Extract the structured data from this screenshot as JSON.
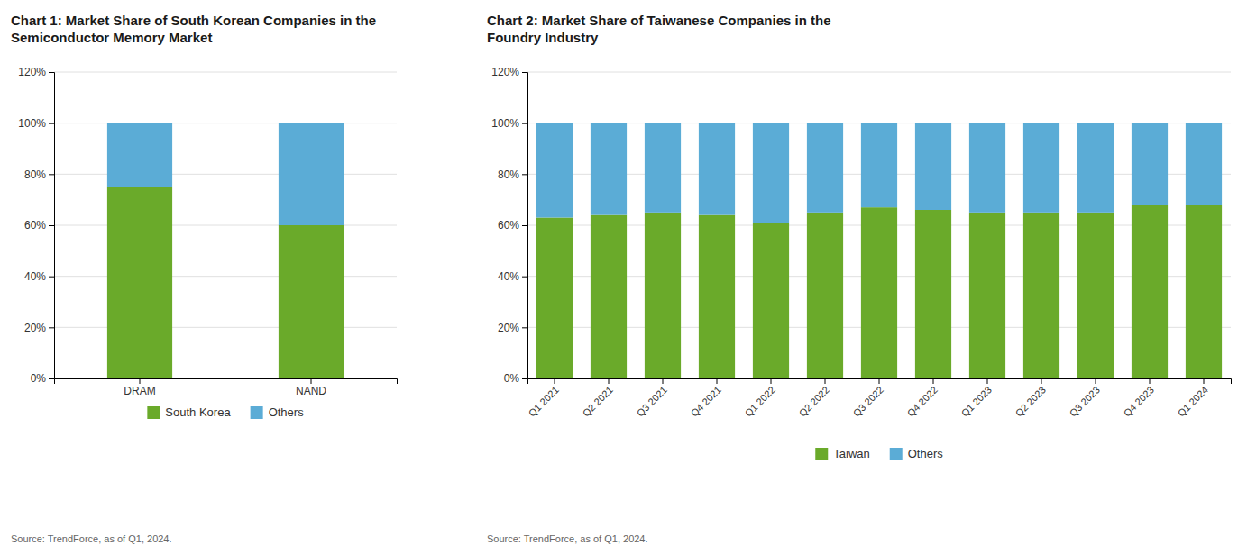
{
  "chart_data": [
    {
      "type": "bar",
      "title": "Chart 1: Market Share of South Korean Companies in the\nSemiconductor Memory Market",
      "categories": [
        "DRAM",
        "NAND"
      ],
      "series": [
        {
          "name": "South Korea",
          "color": "#6aaa2a",
          "values": [
            75,
            60
          ]
        },
        {
          "name": "Others",
          "color": "#5bacd6",
          "values": [
            25,
            40
          ]
        }
      ],
      "stacked": true,
      "ylim": [
        0,
        120
      ],
      "yticks": [
        {
          "value": 0,
          "label": "0%"
        },
        {
          "value": 20,
          "label": "20%"
        },
        {
          "value": 40,
          "label": "40%"
        },
        {
          "value": 60,
          "label": "60%"
        },
        {
          "value": 80,
          "label": "80%"
        },
        {
          "value": 100,
          "label": "100%"
        },
        {
          "value": 120,
          "label": "120%"
        }
      ],
      "grid": true,
      "legend": "bottom",
      "annotations": [
        "Source: TrendForce, as of Q1, 2024."
      ]
    },
    {
      "type": "bar",
      "title": "Chart 2: Market Share of Taiwanese Companies in the\nFoundry Industry",
      "categories": [
        "Q1 2021",
        "Q2 2021",
        "Q3 2021",
        "Q4 2021",
        "Q1 2022",
        "Q2 2022",
        "Q3 2022",
        "Q4 2022",
        "Q1 2023",
        "Q2 2023",
        "Q3 2023",
        "Q4 2023",
        "Q1 2024"
      ],
      "series": [
        {
          "name": "Taiwan",
          "color": "#6aaa2a",
          "values": [
            63,
            64,
            65,
            64,
            61,
            65,
            67,
            66,
            65,
            65,
            65,
            68,
            68
          ]
        },
        {
          "name": "Others",
          "color": "#5bacd6",
          "values": [
            37,
            36,
            35,
            36,
            39,
            35,
            33,
            34,
            35,
            35,
            35,
            32,
            32
          ]
        }
      ],
      "stacked": true,
      "ylim": [
        0,
        120
      ],
      "yticks": [
        {
          "value": 0,
          "label": "0%"
        },
        {
          "value": 20,
          "label": "20%"
        },
        {
          "value": 40,
          "label": "40%"
        },
        {
          "value": 60,
          "label": "60%"
        },
        {
          "value": 80,
          "label": "80%"
        },
        {
          "value": 100,
          "label": "100%"
        },
        {
          "value": 120,
          "label": "120%"
        }
      ],
      "grid": true,
      "legend": "bottom",
      "annotations": [
        "Source: TrendForce, as of Q1, 2024."
      ]
    }
  ]
}
